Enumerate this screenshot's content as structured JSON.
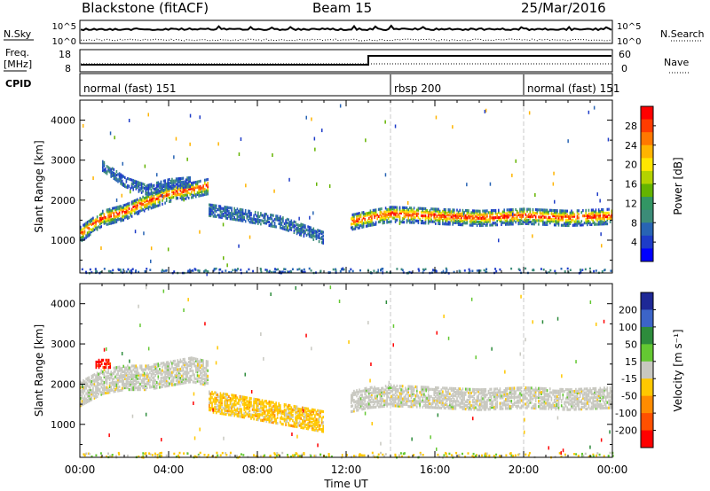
{
  "header": {
    "station": "Blackstone (fitACF)",
    "beam": "Beam 15",
    "date": "25/Mar/2016"
  },
  "top_panels": {
    "nsky_label": "N.Sky",
    "nsearch_label": "N.Search",
    "freq_label_1": "Freq.",
    "freq_label_2": "[MHz]",
    "nave_label": "Nave",
    "cpid_label": "CPID",
    "nsky_ticks": [
      "10^5",
      "10^0"
    ],
    "nsearch_ticks": [
      "10^5",
      "10^0"
    ],
    "freq_ticks": [
      "18",
      "8"
    ],
    "nave_ticks": [
      "60",
      "0"
    ]
  },
  "cpid_segments": [
    {
      "label": "normal (fast) 151",
      "start_hour": 0,
      "end_hour": 14
    },
    {
      "label": "rbsp 200",
      "start_hour": 14,
      "end_hour": 20
    },
    {
      "label": "normal (fast) 151",
      "start_hour": 20,
      "end_hour": 24
    }
  ],
  "power_colorbar": {
    "title": "Power [dB]",
    "ticks": [
      "28",
      "24",
      "20",
      "16",
      "12",
      "8",
      "4"
    ],
    "colors": [
      "#ff0000",
      "#ff3c00",
      "#ff7800",
      "#ffb400",
      "#ffe600",
      "#b4d200",
      "#64b400",
      "#329664",
      "#3c8c78",
      "#2864b4",
      "#1e3cc8",
      "#0000ff"
    ]
  },
  "velocity_colorbar": {
    "title": "Velocity [m s⁻¹]",
    "ticks": [
      "200",
      "100",
      "50",
      "15",
      "-15",
      "-50",
      "-100",
      "-200"
    ],
    "colors": [
      "#1e2896",
      "#3c64c8",
      "#2d8c3c",
      "#64c832",
      "#c8c8c0",
      "#ffc800",
      "#ff8c00",
      "#ff5000",
      "#ff0000"
    ]
  },
  "x_axis": {
    "title": "Time UT",
    "ticks": [
      "00:00",
      "04:00",
      "08:00",
      "12:00",
      "16:00",
      "20:00",
      "00:00"
    ]
  },
  "chart_data": [
    {
      "type": "heatmap",
      "name": "power",
      "ylabel": "Slant Range [km]",
      "xlabel": "",
      "xlim_hours": [
        0,
        24
      ],
      "ylim": [
        180,
        4500
      ],
      "yticks": [
        1000,
        2000,
        3000,
        4000
      ],
      "colorbar_range_db": [
        0,
        30
      ],
      "echo_bands": [
        {
          "t": [
            0,
            1,
            2,
            3,
            4,
            5,
            5.8
          ],
          "range_km": [
            1200,
            1600,
            1750,
            2000,
            2200,
            2300,
            2400
          ],
          "width_km": 400,
          "level_db": 22
        },
        {
          "t": [
            1,
            2,
            3,
            4,
            5
          ],
          "range_km": [
            2900,
            2500,
            2300,
            2450,
            2500
          ],
          "width_km": 250,
          "level_db": 6
        },
        {
          "t": [
            5.8,
            7,
            8,
            9,
            10,
            11
          ],
          "range_km": [
            1800,
            1700,
            1600,
            1500,
            1300,
            1100
          ],
          "width_km": 300,
          "level_db": 10
        },
        {
          "t": [
            12.2,
            13,
            14,
            16,
            18,
            20,
            22,
            24
          ],
          "range_km": [
            1500,
            1600,
            1700,
            1650,
            1600,
            1650,
            1600,
            1650
          ],
          "width_km": 400,
          "level_db": 22
        }
      ]
    },
    {
      "type": "heatmap",
      "name": "velocity",
      "ylabel": "Slant Range [km]",
      "xlabel": "Time UT",
      "xlim_hours": [
        0,
        24
      ],
      "ylim": [
        180,
        4500
      ],
      "yticks": [
        1000,
        2000,
        3000,
        4000
      ],
      "colorbar_range_ms": [
        -250,
        250
      ],
      "echo_bands": [
        {
          "t": [
            0,
            1,
            2,
            3,
            4,
            5,
            5.8
          ],
          "range_km": [
            1800,
            2100,
            2200,
            2200,
            2300,
            2400,
            2300
          ],
          "width_km": 600,
          "velocity": "-15..15"
        },
        {
          "t": [
            0.7,
            1.4
          ],
          "range_km": [
            2550,
            2550
          ],
          "width_km": 200,
          "velocity": "-200"
        },
        {
          "t": [
            5.8,
            7,
            8,
            9,
            10,
            11
          ],
          "range_km": [
            1600,
            1500,
            1400,
            1300,
            1200,
            1100
          ],
          "width_km": 500,
          "velocity": "-50..-15"
        },
        {
          "t": [
            12.2,
            13,
            14,
            16,
            18,
            20,
            22,
            24
          ],
          "range_km": [
            1600,
            1700,
            1750,
            1700,
            1650,
            1700,
            1650,
            1700
          ],
          "width_km": 500,
          "velocity": "-15..15"
        }
      ]
    }
  ]
}
